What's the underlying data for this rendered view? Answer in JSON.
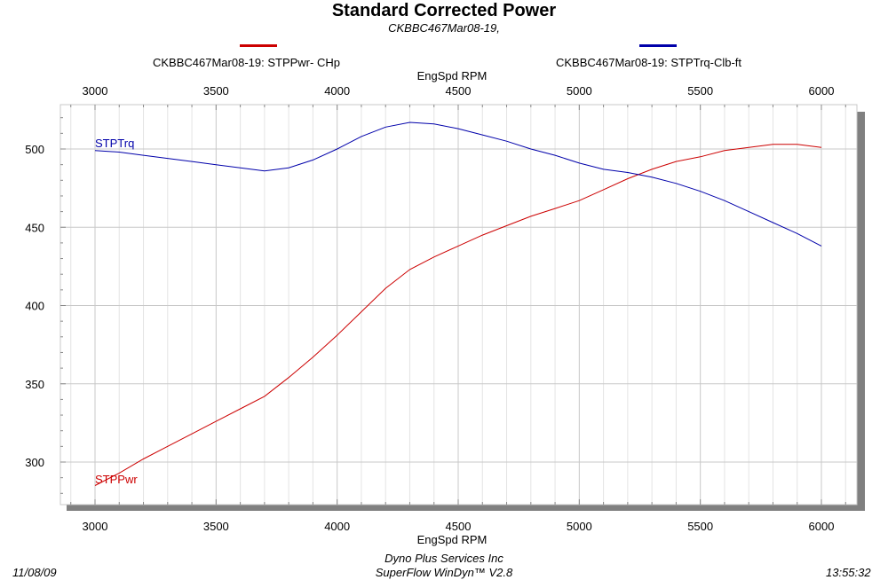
{
  "chart_data": {
    "type": "line",
    "title": "Standard Corrected Power",
    "subtitle": "CKBBC467Mar08-19,",
    "xlabel": "EngSpd  RPM",
    "ylabel": "",
    "xlim": [
      2900,
      6150
    ],
    "ylim": [
      275,
      525
    ],
    "x_ticks": [
      3000,
      3500,
      4000,
      4500,
      5000,
      5500,
      6000
    ],
    "y_ticks": [
      300,
      350,
      400,
      450,
      500
    ],
    "grid": true,
    "legend_position": "top",
    "legend": [
      {
        "label": "CKBBC467Mar08-19: STPPwr- CHp",
        "color": "#cc0000"
      },
      {
        "label": "CKBBC467Mar08-19: STPTrq-Clb-ft",
        "color": "#0000aa"
      }
    ],
    "x": [
      3000,
      3100,
      3200,
      3300,
      3400,
      3500,
      3600,
      3700,
      3800,
      3900,
      4000,
      4100,
      4200,
      4300,
      4400,
      4500,
      4600,
      4700,
      4800,
      4900,
      5000,
      5100,
      5200,
      5300,
      5400,
      5500,
      5600,
      5700,
      5800,
      5900,
      6000
    ],
    "series": [
      {
        "name": "STPPwr",
        "color": "#cc0000",
        "values": [
          285,
          293,
          302,
          310,
          318,
          326,
          334,
          342,
          354,
          367,
          381,
          396,
          411,
          423,
          431,
          438,
          445,
          451,
          457,
          462,
          467,
          474,
          481,
          487,
          492,
          495,
          499,
          501,
          503,
          503,
          501
        ]
      },
      {
        "name": "STPTrq",
        "color": "#0000aa",
        "values": [
          499,
          498,
          496,
          494,
          492,
          490,
          488,
          486,
          488,
          493,
          500,
          508,
          514,
          517,
          516,
          513,
          509,
          505,
          500,
          496,
          491,
          487,
          485,
          482,
          478,
          473,
          467,
          460,
          453,
          446,
          438
        ]
      }
    ]
  },
  "footer": {
    "date": "11/08/09",
    "company": "Dyno Plus Services Inc",
    "software": "SuperFlow WinDyn™ V2.8",
    "time": "13:55:32"
  }
}
